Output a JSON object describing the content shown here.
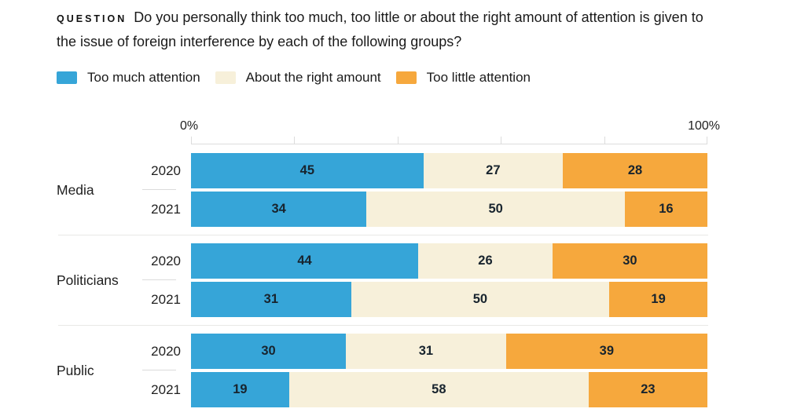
{
  "question": {
    "kicker": "QUESTION",
    "text": "Do you personally think too much, too little or about the right amount of attention is given to the issue of foreign interference by each of the following groups?"
  },
  "legend": {
    "items": [
      {
        "key": "too-much",
        "label": "Too much attention",
        "color": "#36a5d8"
      },
      {
        "key": "about-right",
        "label": "About the right amount",
        "color": "#f7f0da"
      },
      {
        "key": "too-little",
        "label": "Too little attention",
        "color": "#f6a83d"
      }
    ]
  },
  "axis": {
    "start_label": "0%",
    "end_label": "100%",
    "ticks_percent": [
      0,
      20,
      40,
      60,
      80,
      100
    ]
  },
  "chart_data": {
    "type": "bar",
    "variant": "horizontal-stacked",
    "title": "Do you personally think too much, too little or about the right amount of attention is given to the issue of foreign interference by each of the following groups?",
    "series": [
      "Too much attention",
      "About the right amount",
      "Too little attention"
    ],
    "series_keys": [
      "too-much",
      "about-right",
      "too-little"
    ],
    "colors": [
      "#36a5d8",
      "#f7f0da",
      "#f6a83d"
    ],
    "xlim": [
      0,
      100
    ],
    "legend_position": "top",
    "grid": false,
    "groups": [
      {
        "label": "Media",
        "rows": [
          {
            "year": "2020",
            "values": [
              45,
              27,
              28
            ]
          },
          {
            "year": "2021",
            "values": [
              34,
              50,
              16
            ]
          }
        ]
      },
      {
        "label": "Politicians",
        "rows": [
          {
            "year": "2020",
            "values": [
              44,
              26,
              30
            ]
          },
          {
            "year": "2021",
            "values": [
              31,
              50,
              19
            ]
          }
        ]
      },
      {
        "label": "Public",
        "rows": [
          {
            "year": "2020",
            "values": [
              30,
              31,
              39
            ]
          },
          {
            "year": "2021",
            "values": [
              19,
              58,
              23
            ]
          }
        ]
      }
    ]
  }
}
